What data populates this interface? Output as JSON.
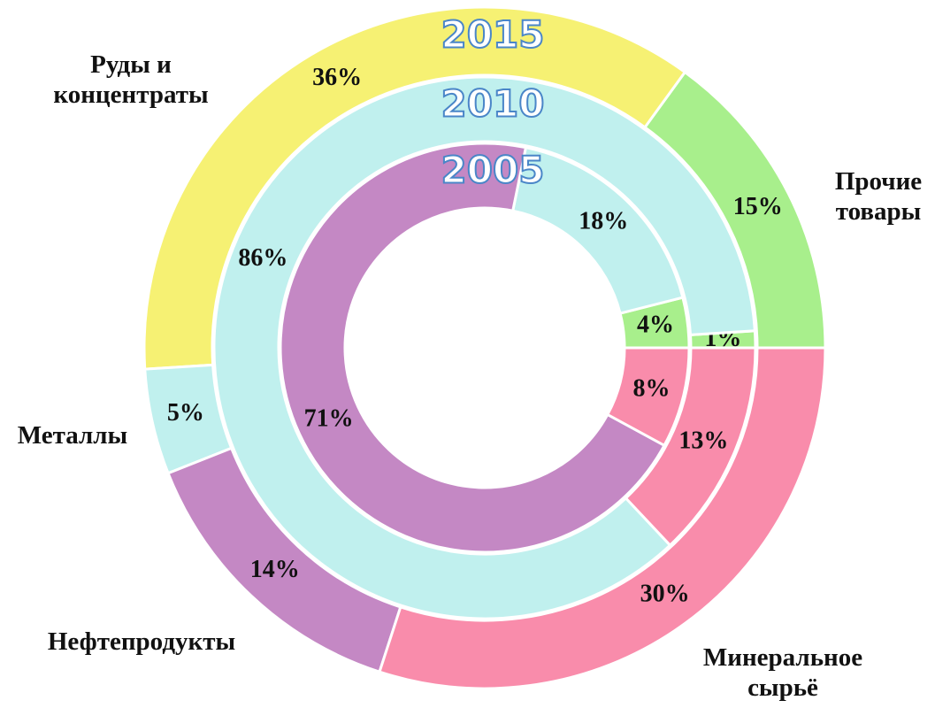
{
  "chart_data": {
    "type": "pie",
    "categories": [
      "Прочие товары",
      "Руды и концентраты",
      "Металлы",
      "Нефтепродукты",
      "Минеральное сырьё"
    ],
    "colors": [
      "#a8ef8c",
      "#f6f173",
      "#c0f0ee",
      "#c488c4",
      "#f98cab"
    ],
    "series": [
      {
        "name": "2015",
        "values": [
          15,
          36,
          5,
          14,
          30
        ],
        "value_labels": [
          "15%",
          "36%",
          "5%",
          "14%",
          "30%"
        ]
      },
      {
        "name": "2010",
        "values": [
          1,
          null,
          86,
          null,
          13
        ],
        "value_labels": [
          "1%",
          null,
          "86%",
          null,
          "13%"
        ]
      },
      {
        "name": "2005",
        "values": [
          4,
          null,
          18,
          71,
          8
        ],
        "value_labels": [
          "4%",
          null,
          "18%",
          "71%",
          "8%"
        ]
      }
    ]
  }
}
